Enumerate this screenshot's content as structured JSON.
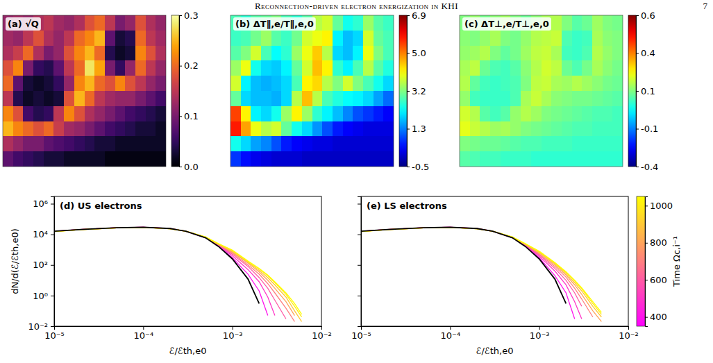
{
  "page_header": {
    "title": "Reconnection-driven electron energization in KHI",
    "page": "7"
  },
  "chart_data": [
    {
      "type": "heatmap",
      "title": "(a) √Q",
      "tick_labels": false,
      "zlim": [
        0,
        0.3
      ],
      "zticks": [
        {
          "value": 0,
          "label": "0.0"
        },
        0.1,
        0.2,
        0.3
      ],
      "cells": [
        [
          0.12,
          0.13,
          0.12,
          0.14,
          0.15,
          0.13,
          0.12,
          0.14,
          0.18,
          0.2,
          0.15,
          0.1,
          0.12,
          0.18,
          0.14,
          0.12
        ],
        [
          0.13,
          0.12,
          0.15,
          0.18,
          0.14,
          0.12,
          0.15,
          0.2,
          0.22,
          0.25,
          0.08,
          0.03,
          0.04,
          0.2,
          0.15,
          0.13
        ],
        [
          0.14,
          0.16,
          0.2,
          0.14,
          0.1,
          0.12,
          0.18,
          0.22,
          0.25,
          0.2,
          0.04,
          0.02,
          0.03,
          0.22,
          0.18,
          0.14
        ],
        [
          0.18,
          0.22,
          0.1,
          0.05,
          0.04,
          0.08,
          0.15,
          0.2,
          0.28,
          0.24,
          0.1,
          0.05,
          0.12,
          0.2,
          0.15,
          0.12
        ],
        [
          0.2,
          0.08,
          0.03,
          0.02,
          0.03,
          0.05,
          0.12,
          0.22,
          0.25,
          0.2,
          0.18,
          0.22,
          0.18,
          0.15,
          0.12,
          0.1
        ],
        [
          0.15,
          0.04,
          0.02,
          0.03,
          0.02,
          0.03,
          0.18,
          0.25,
          0.2,
          0.15,
          0.13,
          0.12,
          0.12,
          0.1,
          0.08,
          0.06
        ],
        [
          0.22,
          0.18,
          0.06,
          0.04,
          0.05,
          0.15,
          0.22,
          0.18,
          0.14,
          0.12,
          0.1,
          0.08,
          0.06,
          0.05,
          0.04,
          0.03
        ],
        [
          0.25,
          0.22,
          0.2,
          0.18,
          0.2,
          0.16,
          0.13,
          0.12,
          0.1,
          0.08,
          0.06,
          0.05,
          0.04,
          0.03,
          0.03,
          0.02
        ],
        [
          0.14,
          0.12,
          0.1,
          0.1,
          0.08,
          0.07,
          0.06,
          0.05,
          0.04,
          0.03,
          0.03,
          0.02,
          0.02,
          0.02,
          0.02,
          0.02
        ],
        [
          0.08,
          0.06,
          0.05,
          0.04,
          0.03,
          0.03,
          0.02,
          0.02,
          0.02,
          0.02,
          0.01,
          0.01,
          0.01,
          0.01,
          0.01,
          0.01
        ]
      ]
    },
    {
      "type": "heatmap",
      "title": "(b) ΔT∥,e/T∥,e,0",
      "tick_labels": false,
      "zlim": [
        -0.5,
        6.9
      ],
      "zticks": [
        -0.5,
        {
          "value": 1.35,
          "label": "1.3"
        },
        3.2,
        {
          "value": 5.05,
          "label": "5.0"
        },
        6.9
      ],
      "cells": [
        [
          2.8,
          2.6,
          2.9,
          3.0,
          3.2,
          2.8,
          2.6,
          2.9,
          3.6,
          3.8,
          3.0,
          2.4,
          2.6,
          3.4,
          2.9,
          2.7
        ],
        [
          2.7,
          2.8,
          3.1,
          3.4,
          2.9,
          2.7,
          3.1,
          3.8,
          4.0,
          4.2,
          2.2,
          1.8,
          2.0,
          3.8,
          3.0,
          2.8
        ],
        [
          2.9,
          3.2,
          3.8,
          2.8,
          2.3,
          2.6,
          3.4,
          4.0,
          4.5,
          3.6,
          2.0,
          1.8,
          2.2,
          4.0,
          3.2,
          2.8
        ],
        [
          3.4,
          4.0,
          2.4,
          2.0,
          1.9,
          2.2,
          3.0,
          3.8,
          4.6,
          4.2,
          2.6,
          2.2,
          2.8,
          3.6,
          2.9,
          2.5
        ],
        [
          3.8,
          2.2,
          1.8,
          1.7,
          1.8,
          2.0,
          2.8,
          4.2,
          4.4,
          3.6,
          3.2,
          3.8,
          3.2,
          2.8,
          2.4,
          2.0
        ],
        [
          3.0,
          2.0,
          1.8,
          1.8,
          1.7,
          2.0,
          3.6,
          4.6,
          3.6,
          2.8,
          2.5,
          2.3,
          2.2,
          2.0,
          1.6,
          1.2
        ],
        [
          5.5,
          4.2,
          2.2,
          2.0,
          2.4,
          3.4,
          4.2,
          3.4,
          2.6,
          2.2,
          1.8,
          1.4,
          1.0,
          0.8,
          0.6,
          0.4
        ],
        [
          5.8,
          4.8,
          4.0,
          3.6,
          3.8,
          3.0,
          2.4,
          2.0,
          1.5,
          1.0,
          0.6,
          0.4,
          0.3,
          0.2,
          0.2,
          0.2
        ],
        [
          2.4,
          2.0,
          1.6,
          1.4,
          1.0,
          0.6,
          0.4,
          0.3,
          0.2,
          0.2,
          0.1,
          0.1,
          0.1,
          0.1,
          0.1,
          0.1
        ],
        [
          0.8,
          0.5,
          0.3,
          0.2,
          0.1,
          0.1,
          0.1,
          0.0,
          0.0,
          0.0,
          0.0,
          0.0,
          0.0,
          0.0,
          0.0,
          0.0
        ]
      ]
    },
    {
      "type": "heatmap",
      "title": "(c) ΔT⊥,e/T⊥,e,0",
      "tick_labels": false,
      "zlim": [
        -0.4,
        0.6
      ],
      "zticks": [
        -0.4,
        {
          "value": -0.15,
          "label": "-0.1"
        },
        0.1,
        {
          "value": 0.35,
          "label": "0.4"
        },
        0.6
      ],
      "cells": [
        [
          0.1,
          0.12,
          0.09,
          0.11,
          0.13,
          0.1,
          0.08,
          0.11,
          0.14,
          0.15,
          0.1,
          0.06,
          0.08,
          0.13,
          0.1,
          0.09
        ],
        [
          0.11,
          0.1,
          0.12,
          0.14,
          0.1,
          0.09,
          0.12,
          0.15,
          0.16,
          0.17,
          0.05,
          0.03,
          0.04,
          0.14,
          0.11,
          0.1
        ],
        [
          0.12,
          0.13,
          0.15,
          0.1,
          0.07,
          0.09,
          0.13,
          0.16,
          0.17,
          0.14,
          0.04,
          0.03,
          0.05,
          0.15,
          0.12,
          0.1
        ],
        [
          0.14,
          0.16,
          0.08,
          0.05,
          0.04,
          0.06,
          0.11,
          0.15,
          0.18,
          0.16,
          0.08,
          0.05,
          0.09,
          0.14,
          0.11,
          0.09
        ],
        [
          0.15,
          0.07,
          0.04,
          0.03,
          0.04,
          0.05,
          0.1,
          0.16,
          0.17,
          0.14,
          0.13,
          0.15,
          0.13,
          0.11,
          0.09,
          0.08
        ],
        [
          0.12,
          0.04,
          0.03,
          0.03,
          0.03,
          0.05,
          0.14,
          0.17,
          0.14,
          0.11,
          0.1,
          0.09,
          0.09,
          0.08,
          0.07,
          0.06
        ],
        [
          0.18,
          0.15,
          0.06,
          0.04,
          0.06,
          0.12,
          0.15,
          0.13,
          0.1,
          0.09,
          0.08,
          0.07,
          0.06,
          0.05,
          0.05,
          0.04
        ],
        [
          0.2,
          0.17,
          0.15,
          0.13,
          0.14,
          0.12,
          0.1,
          0.09,
          0.08,
          0.07,
          0.06,
          0.05,
          0.05,
          0.04,
          0.04,
          0.04
        ],
        [
          0.1,
          0.09,
          0.08,
          0.08,
          0.07,
          0.06,
          0.05,
          0.05,
          0.04,
          0.04,
          0.04,
          0.03,
          0.03,
          0.03,
          0.03,
          0.03
        ],
        [
          0.06,
          0.05,
          0.04,
          0.04,
          0.03,
          0.03,
          0.03,
          0.02,
          0.02,
          0.02,
          0.02,
          0.02,
          0.02,
          0.02,
          0.02,
          0.02
        ]
      ]
    },
    {
      "type": "line",
      "title": "(d) US electrons",
      "log": true,
      "xlabel": "ℰ/ℰth,e0",
      "ylabel": "dN/d(ℰ/ℰth,e0)",
      "xlim": [
        1e-05,
        0.01
      ],
      "ylim": [
        0.01,
        3000000
      ],
      "xticks": [
        {
          "value": 1e-05,
          "label": "10⁻⁵"
        },
        {
          "value": 0.0001,
          "label": "10⁻⁴"
        },
        {
          "value": 0.001,
          "label": "10⁻³"
        },
        {
          "value": 0.01,
          "label": "10⁻²"
        }
      ],
      "yticks": [
        {
          "value": 0.01,
          "label": "10⁻²"
        },
        {
          "value": 1,
          "label": "10⁰"
        },
        {
          "value": 100,
          "label": "10²"
        },
        {
          "value": 10000,
          "label": "10⁴"
        },
        {
          "value": 1000000,
          "label": "10⁶"
        }
      ],
      "x": [
        1e-05,
        2e-05,
        5e-05,
        0.0001,
        0.0002,
        0.0003,
        0.0005,
        0.0007,
        0.001,
        0.0015,
        0.002,
        0.0025,
        0.003,
        0.004,
        0.005,
        0.006
      ],
      "series": [
        {
          "time": 400,
          "values": [
            16000,
            21000,
            27000,
            29000,
            24000,
            16000,
            6000,
            1800,
            300,
            25,
            2,
            0.05,
            null,
            null,
            null,
            null
          ]
        },
        {
          "time": 500,
          "values": [
            16000,
            21000,
            27000,
            29000,
            24000,
            16000,
            6200,
            1900,
            400,
            50,
            8,
            0.8,
            0.05,
            null,
            null,
            null
          ]
        },
        {
          "time": 600,
          "values": [
            15800,
            20800,
            26800,
            28800,
            23800,
            16000,
            6300,
            2000,
            500,
            80,
            15,
            3,
            0.5,
            0.03,
            null,
            null
          ]
        },
        {
          "time": 700,
          "values": [
            15600,
            20600,
            26600,
            28600,
            23600,
            16000,
            6400,
            2100,
            600,
            100,
            25,
            6,
            1.5,
            0.15,
            0.02,
            null
          ]
        },
        {
          "time": 800,
          "values": [
            15500,
            20500,
            26500,
            28500,
            23500,
            16000,
            6500,
            2200,
            700,
            130,
            35,
            10,
            3,
            0.4,
            0.05,
            null
          ]
        },
        {
          "time": 900,
          "values": [
            15400,
            20400,
            26400,
            28400,
            23400,
            16000,
            6600,
            2300,
            800,
            150,
            45,
            15,
            5,
            0.8,
            0.1,
            0.02
          ]
        },
        {
          "time": 1000,
          "values": [
            15300,
            20300,
            26300,
            28300,
            23300,
            16000,
            6700,
            2400,
            900,
            170,
            55,
            20,
            7,
            1.2,
            0.2,
            0.04
          ]
        },
        {
          "time": 1050,
          "values": [
            15200,
            20200,
            26200,
            28200,
            23200,
            16000,
            6700,
            2450,
            950,
            180,
            60,
            22,
            8,
            1.5,
            0.3,
            0.06
          ]
        },
        {
          "color": "#000000",
          "values": [
            16000,
            21000,
            27000,
            29000,
            24000,
            16000,
            6000,
            1600,
            250,
            12,
            0.3,
            null,
            null,
            null,
            null,
            null
          ]
        }
      ]
    },
    {
      "type": "line",
      "title": "(e) LS electrons",
      "log": true,
      "tick_labels": "x",
      "xlabel": "ℰ/ℰth,e0",
      "xlim": [
        1e-05,
        0.01
      ],
      "ylim": [
        0.01,
        3000000
      ],
      "xticks": [
        {
          "value": 1e-05,
          "label": "10⁻⁵"
        },
        {
          "value": 0.0001,
          "label": "10⁻⁴"
        },
        {
          "value": 0.001,
          "label": "10⁻³"
        },
        {
          "value": 0.01,
          "label": "10⁻²"
        }
      ],
      "yticks": [
        0.01,
        1,
        100,
        10000,
        1000000
      ],
      "clim": [
        350,
        1050
      ],
      "cticks": [
        400,
        600,
        800,
        1000
      ],
      "clabel": "Time Ωc,i⁻¹",
      "x": [
        1e-05,
        2e-05,
        5e-05,
        0.0001,
        0.0002,
        0.0003,
        0.0005,
        0.0007,
        0.001,
        0.0015,
        0.002,
        0.0025,
        0.003,
        0.004,
        0.005,
        0.006
      ],
      "series": [
        {
          "time": 400,
          "values": [
            16000,
            21000,
            27000,
            29000,
            24000,
            16000,
            6000,
            1800,
            300,
            20,
            1.5,
            0.03,
            null,
            null,
            null,
            null
          ]
        },
        {
          "time": 500,
          "values": [
            16000,
            21000,
            27000,
            29000,
            24000,
            16000,
            6200,
            1900,
            380,
            40,
            5,
            0.4,
            0.03,
            null,
            null,
            null
          ]
        },
        {
          "time": 600,
          "values": [
            15800,
            20800,
            26800,
            28800,
            23800,
            16000,
            6300,
            2000,
            450,
            60,
            10,
            1.5,
            0.2,
            null,
            null,
            null
          ]
        },
        {
          "time": 700,
          "values": [
            15600,
            20600,
            26600,
            28600,
            23600,
            16000,
            6400,
            2100,
            520,
            80,
            16,
            3,
            0.6,
            0.04,
            null,
            null
          ]
        },
        {
          "time": 800,
          "values": [
            15500,
            20500,
            26500,
            28500,
            23500,
            16000,
            6500,
            2200,
            600,
            100,
            22,
            5,
            1.2,
            0.1,
            0.02,
            null
          ]
        },
        {
          "time": 900,
          "values": [
            15400,
            20400,
            26400,
            28400,
            23400,
            16000,
            6600,
            2300,
            680,
            120,
            28,
            7,
            2,
            0.2,
            0.04,
            null
          ]
        },
        {
          "time": 1000,
          "values": [
            15300,
            20300,
            26300,
            28300,
            23300,
            16000,
            6700,
            2400,
            750,
            135,
            33,
            9,
            2.8,
            0.3,
            0.06,
            null
          ]
        },
        {
          "time": 1050,
          "values": [
            15200,
            20200,
            26200,
            28200,
            23200,
            16000,
            6700,
            2450,
            800,
            145,
            36,
            10,
            3.2,
            0.4,
            0.08,
            null
          ]
        },
        {
          "color": "#000000",
          "values": [
            16000,
            21000,
            27000,
            29000,
            24000,
            16000,
            6000,
            1600,
            250,
            12,
            0.3,
            null,
            null,
            null,
            null,
            null
          ]
        }
      ]
    }
  ]
}
